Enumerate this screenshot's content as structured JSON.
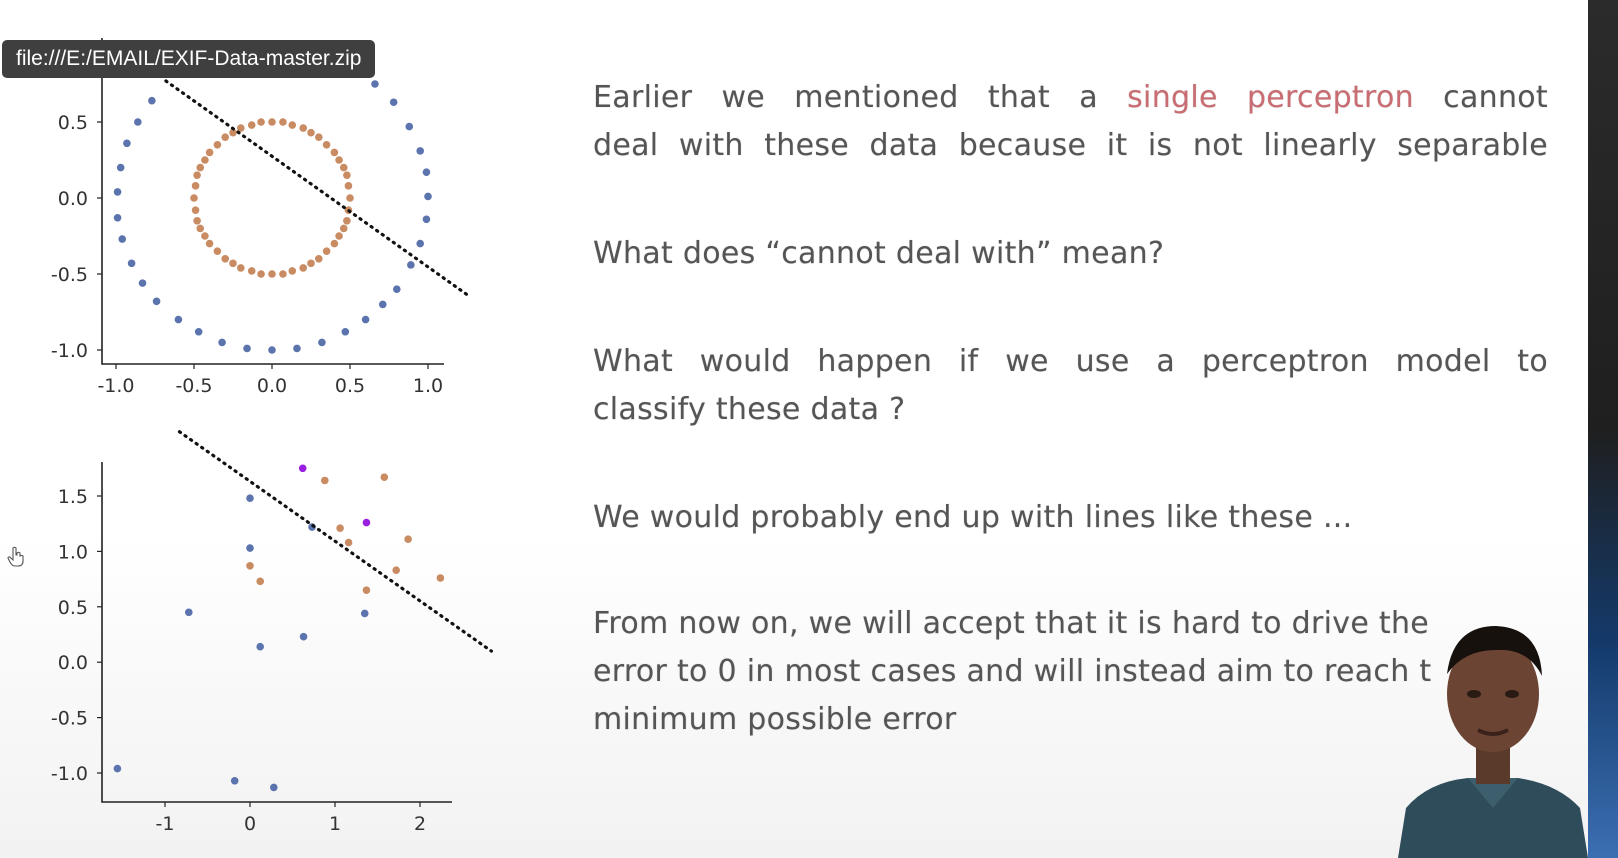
{
  "browser": {
    "status_url": "file:///E:/EMAIL/EXIF-Data-master.zip"
  },
  "slide": {
    "p1_part1": "Earlier we mentioned that a",
    "p1_highlight": "single perceptron",
    "p1_part2": "cannot",
    "p1_line2": "deal with these data because it is not linearly separable",
    "q1": "What does “cannot deal with” mean?",
    "q2_line1": "What would happen if we use a perceptron model to",
    "q2_line2": "classify these data ?",
    "a1": "We would probably end up with  lines like these ...",
    "p5_line1": "From now on, we will accept that it is hard to drive the",
    "p5_line2": "error to 0 in most cases and will instead aim to reach t",
    "p5_line3": "minimum possible error",
    "highlight_color": "#c96d72",
    "text_color": "#555555"
  },
  "icons": {
    "cursor": "hand-cursor-icon",
    "presenter": "presenter-video"
  },
  "chart_data": [
    {
      "type": "scatter",
      "title": "",
      "xlabel": "",
      "ylabel": "",
      "xlim": [
        -1.15,
        1.25
      ],
      "ylim": [
        -1.1,
        1.05
      ],
      "xticks": [
        "-1.0",
        "-0.5",
        "0.0",
        "0.5",
        "1.0"
      ],
      "yticks": [
        "0.5",
        "0.0",
        "-0.5",
        "-1.0"
      ],
      "series": [
        {
          "color": "#5b74ad",
          "points": [
            [
              0.95,
              -0.3
            ],
            [
              0.89,
              -0.44
            ],
            [
              0.8,
              -0.6
            ],
            [
              0.71,
              -0.7
            ],
            [
              0.6,
              -0.8
            ],
            [
              0.47,
              -0.88
            ],
            [
              0.32,
              -0.95
            ],
            [
              0.16,
              -0.99
            ],
            [
              0.0,
              -1.0
            ],
            [
              -0.16,
              -0.99
            ],
            [
              -0.32,
              -0.95
            ],
            [
              -0.47,
              -0.88
            ],
            [
              -0.6,
              -0.8
            ],
            [
              -0.74,
              -0.68
            ],
            [
              -0.83,
              -0.56
            ],
            [
              -0.9,
              -0.43
            ],
            [
              -0.96,
              -0.27
            ],
            [
              -0.99,
              -0.13
            ],
            [
              -0.99,
              0.04
            ],
            [
              -0.97,
              0.2
            ],
            [
              -0.93,
              0.36
            ],
            [
              -0.86,
              0.5
            ],
            [
              -0.77,
              0.64
            ],
            [
              0.66,
              0.75
            ],
            [
              0.78,
              0.63
            ],
            [
              0.88,
              0.47
            ],
            [
              0.95,
              0.31
            ],
            [
              0.99,
              0.17
            ],
            [
              1.0,
              0.01
            ],
            [
              0.99,
              -0.14
            ]
          ]
        },
        {
          "color": "#c98b62",
          "points": [
            [
              0.5,
              0.0
            ],
            [
              0.49,
              0.08
            ],
            [
              0.48,
              0.15
            ],
            [
              0.46,
              0.2
            ],
            [
              0.43,
              0.25
            ],
            [
              0.4,
              0.3
            ],
            [
              0.35,
              0.35
            ],
            [
              0.3,
              0.4
            ],
            [
              0.25,
              0.43
            ],
            [
              0.2,
              0.46
            ],
            [
              0.13,
              0.48
            ],
            [
              0.07,
              0.5
            ],
            [
              0.0,
              0.5
            ],
            [
              -0.07,
              0.5
            ],
            [
              -0.13,
              0.48
            ],
            [
              -0.2,
              0.46
            ],
            [
              -0.25,
              0.43
            ],
            [
              -0.3,
              0.4
            ],
            [
              -0.35,
              0.35
            ],
            [
              -0.4,
              0.3
            ],
            [
              -0.43,
              0.25
            ],
            [
              -0.46,
              0.2
            ],
            [
              -0.48,
              0.15
            ],
            [
              -0.49,
              0.08
            ],
            [
              -0.5,
              0.0
            ],
            [
              -0.49,
              -0.08
            ],
            [
              -0.48,
              -0.15
            ],
            [
              -0.46,
              -0.2
            ],
            [
              -0.43,
              -0.25
            ],
            [
              -0.4,
              -0.3
            ],
            [
              -0.35,
              -0.35
            ],
            [
              -0.3,
              -0.4
            ],
            [
              -0.25,
              -0.43
            ],
            [
              -0.2,
              -0.46
            ],
            [
              -0.13,
              -0.48
            ],
            [
              -0.07,
              -0.5
            ],
            [
              0.0,
              -0.5
            ],
            [
              0.07,
              -0.5
            ],
            [
              0.13,
              -0.48
            ],
            [
              0.2,
              -0.46
            ],
            [
              0.25,
              -0.43
            ],
            [
              0.3,
              -0.4
            ],
            [
              0.35,
              -0.35
            ],
            [
              0.4,
              -0.3
            ],
            [
              0.43,
              -0.25
            ],
            [
              0.46,
              -0.2
            ],
            [
              0.48,
              -0.15
            ],
            [
              0.49,
              -0.08
            ]
          ]
        }
      ],
      "line": {
        "style": "dotted",
        "color": "#111111",
        "from": [
          -0.68,
          0.77
        ],
        "to": [
          1.27,
          -0.65
        ]
      },
      "grid": false
    },
    {
      "type": "scatter",
      "title": "",
      "xlabel": "",
      "ylabel": "",
      "xlim": [
        -1.75,
        2.4
      ],
      "ylim": [
        -1.25,
        1.78
      ],
      "xticks": [
        "-1",
        "0",
        "1",
        "2"
      ],
      "yticks": [
        "1.5",
        "1.0",
        "0.5",
        "0.0",
        "-0.5",
        "-1.0"
      ],
      "series": [
        {
          "color": "#5b74ad",
          "points": [
            [
              0.0,
              1.48
            ],
            [
              0.0,
              1.03
            ],
            [
              -0.72,
              0.45
            ],
            [
              0.12,
              0.14
            ],
            [
              0.63,
              0.23
            ],
            [
              1.35,
              0.44
            ],
            [
              0.73,
              1.22
            ],
            [
              -1.56,
              -0.96
            ],
            [
              -0.18,
              -1.07
            ],
            [
              0.28,
              -1.13
            ]
          ]
        },
        {
          "color": "#c98b62",
          "points": [
            [
              0.0,
              0.87
            ],
            [
              0.12,
              0.73
            ],
            [
              0.88,
              1.64
            ],
            [
              1.58,
              1.67
            ],
            [
              1.06,
              1.21
            ],
            [
              1.16,
              1.08
            ],
            [
              1.86,
              1.11
            ],
            [
              1.37,
              0.65
            ],
            [
              1.72,
              0.83
            ],
            [
              2.24,
              0.76
            ]
          ]
        },
        {
          "color": "#9b1fe0",
          "points": [
            [
              0.62,
              1.75
            ],
            [
              1.37,
              1.26
            ]
          ]
        }
      ],
      "line": {
        "style": "dotted",
        "color": "#111111",
        "from": [
          -0.83,
          2.08
        ],
        "to": [
          2.84,
          0.1
        ]
      },
      "grid": false
    }
  ]
}
